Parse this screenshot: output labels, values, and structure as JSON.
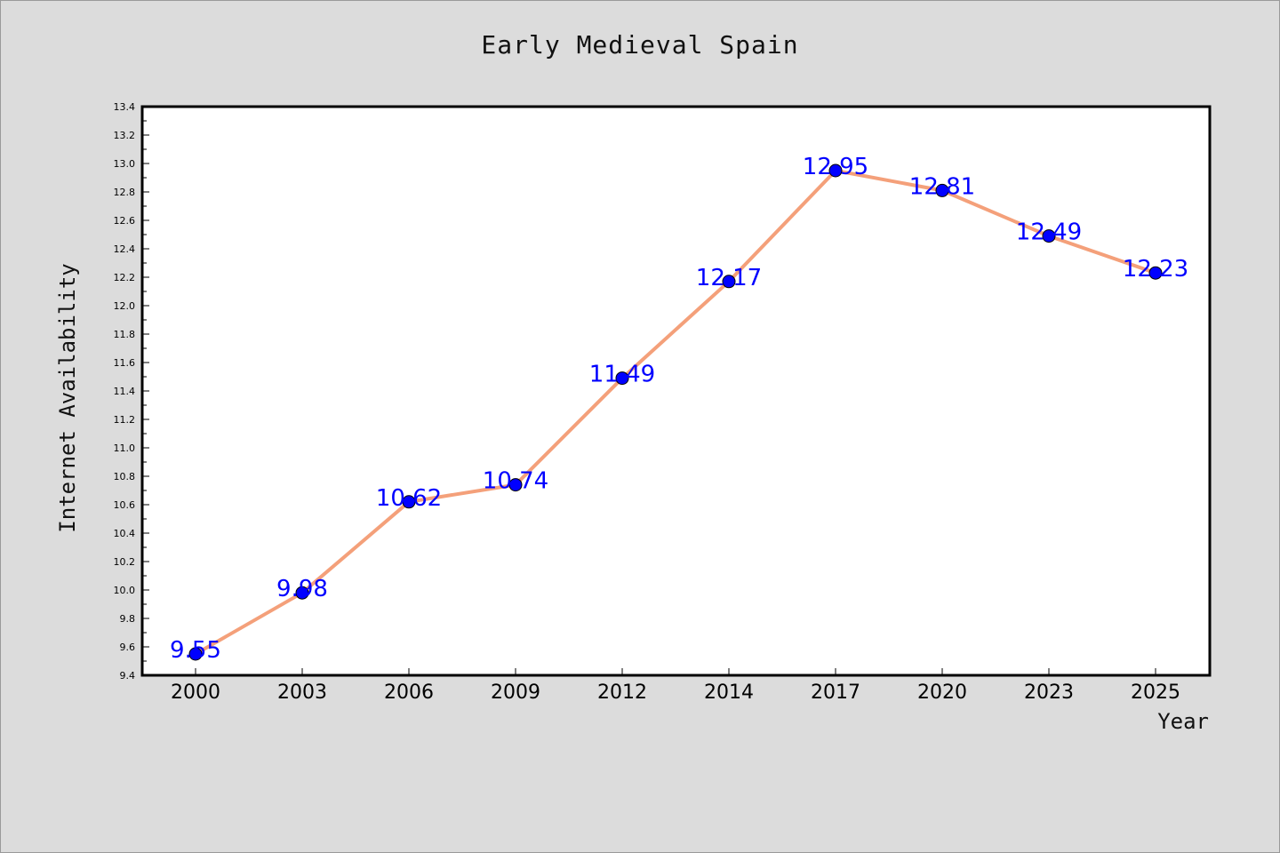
{
  "chart_data": {
    "type": "line",
    "title": "Early Medieval Spain",
    "xlabel": "Year",
    "ylabel": "Internet Availability",
    "categories": [
      "2000",
      "2003",
      "2006",
      "2009",
      "2012",
      "2014",
      "2017",
      "2020",
      "2023",
      "2025"
    ],
    "values": [
      9.55,
      9.98,
      10.62,
      10.74,
      11.49,
      12.17,
      12.95,
      12.81,
      12.49,
      12.23
    ],
    "data_labels": [
      "9.55",
      "9.98",
      "10.62",
      "10.74",
      "11.49",
      "12.17",
      "12.95",
      "12.81",
      "12.49",
      "12.23"
    ],
    "ylim": [
      9.4,
      13.4
    ],
    "yticks": [
      "9.4",
      "9.6",
      "9.8",
      "10.0",
      "10.2",
      "10.4",
      "10.6",
      "10.8",
      "11.0",
      "11.2",
      "11.4",
      "11.6",
      "11.8",
      "12.0",
      "12.2",
      "12.4",
      "12.6",
      "12.8",
      "13.0",
      "13.2",
      "13.4"
    ],
    "grid": false,
    "legend": "none",
    "colors": {
      "line": "#f4a07a",
      "marker": "#0000ff",
      "label": "#0000ff",
      "background": "#dcdcdc",
      "plot_background": "#ffffff"
    }
  }
}
